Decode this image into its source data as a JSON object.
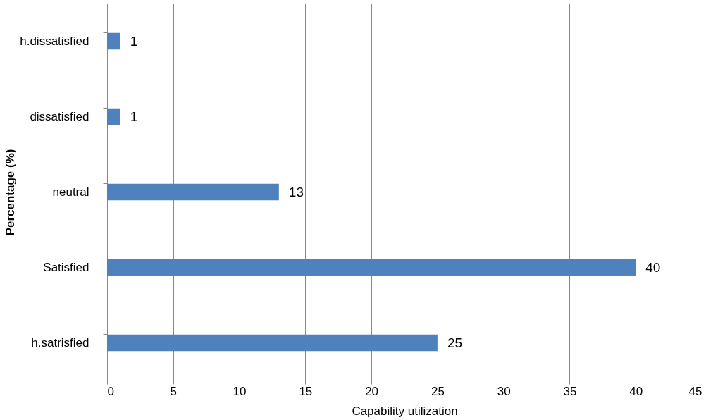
{
  "chart_data": {
    "type": "bar",
    "orientation": "horizontal",
    "categories": [
      "h.dissatisfied",
      "dissatisfied",
      "neutral",
      "Satisfied",
      "h.satrisfied"
    ],
    "values": [
      1,
      1,
      13,
      40,
      25
    ],
    "color": "#4f81bd",
    "xlabel": "Capability utilization",
    "ylabel": "Percentage (%)",
    "xlim": [
      0,
      45
    ],
    "xticks": [
      0,
      5,
      10,
      15,
      20,
      25,
      30,
      35,
      40,
      45
    ],
    "grid": "x",
    "data_labels": true
  }
}
